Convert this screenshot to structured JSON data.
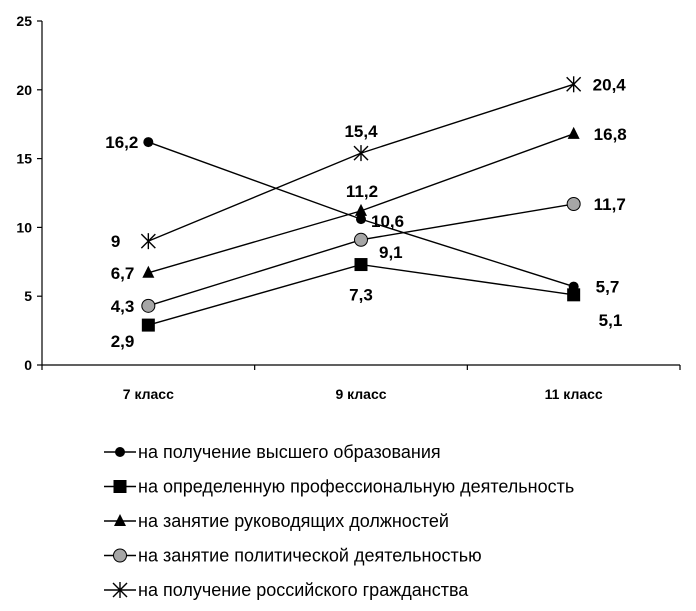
{
  "chart_data": {
    "type": "line",
    "title": "",
    "xlabel": "",
    "ylabel": "",
    "categories": [
      "7 класс",
      "9 класс",
      "11 класс"
    ],
    "ylim": [
      0,
      25
    ],
    "yticks": [
      "0",
      "5",
      "10",
      "15",
      "20",
      "25"
    ],
    "grid": false,
    "legend_position": "bottom",
    "series": [
      {
        "name": "на получение высшего образования",
        "marker": "circle",
        "color": "#000000",
        "values": [
          16.2,
          10.6,
          5.7
        ],
        "labels": [
          "16,2",
          "10,6",
          "5,7"
        ]
      },
      {
        "name": "на определенную профессиональную деятельность",
        "marker": "square",
        "color": "#000000",
        "values": [
          2.9,
          7.3,
          5.1
        ],
        "labels": [
          "2,9",
          "7,3",
          "5,1"
        ]
      },
      {
        "name": "на занятие руководящих должностей",
        "marker": "triangle",
        "color": "#000000",
        "values": [
          6.7,
          11.2,
          16.8
        ],
        "labels": [
          "6,7",
          "11,2",
          "16,8"
        ]
      },
      {
        "name": "на занятие политической деятельностью",
        "marker": "circle-gray",
        "color": "#a6a6a6",
        "values": [
          4.3,
          9.1,
          11.7
        ],
        "labels": [
          "4,3",
          "9,1",
          "11,7"
        ]
      },
      {
        "name": "на получение российского гражданства",
        "marker": "star",
        "color": "#000000",
        "values": [
          9,
          15.4,
          20.4
        ],
        "labels": [
          "9",
          "15,4",
          "20,4"
        ]
      }
    ]
  }
}
